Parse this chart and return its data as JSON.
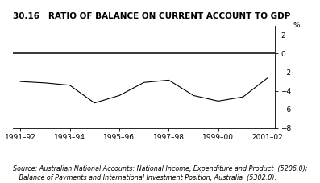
{
  "title": "30.16   RATIO OF BALANCE ON CURRENT ACCOUNT TO GDP",
  "ylabel": "%",
  "ylim": [
    -8,
    3
  ],
  "yticks": [
    2,
    0,
    -2,
    -4,
    -6,
    -8
  ],
  "x_labels": [
    "1991–92",
    "1993–94",
    "1995–96",
    "1997–98",
    "1999–00",
    "2001–02"
  ],
  "x_tick_positions": [
    0,
    2,
    4,
    6,
    8,
    10
  ],
  "xlim": [
    -0.3,
    10.3
  ],
  "line_x": [
    0,
    1,
    2,
    3,
    4,
    5,
    6,
    7,
    8,
    9,
    10
  ],
  "line_y": [
    -3.0,
    -3.15,
    -3.4,
    -5.3,
    -4.5,
    -3.1,
    -2.85,
    -4.5,
    -5.1,
    -4.65,
    -2.6
  ],
  "source_line1": "Source: Australian National Accounts: National Income, Expenditure and Product  (5206.0);",
  "source_line2": "   Balance of Payments and International Investment Position, Australia  (5302.0).",
  "line_color": "#000000",
  "zero_line_color": "#000000",
  "bg_color": "#ffffff",
  "title_fontsize": 7.5,
  "axis_fontsize": 6.5,
  "source_fontsize": 5.8,
  "zero_linewidth": 1.1,
  "data_linewidth": 0.8
}
